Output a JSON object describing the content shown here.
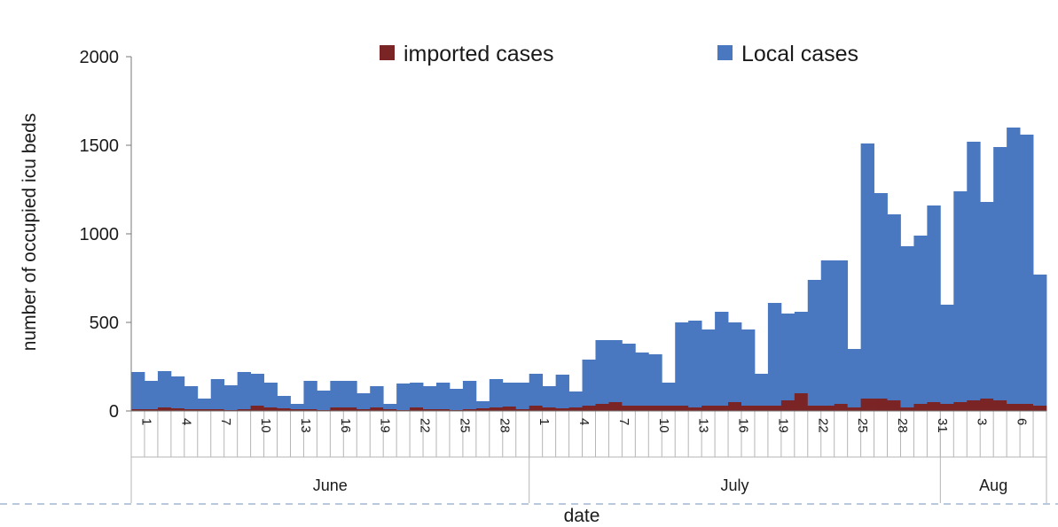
{
  "chart_data": {
    "type": "bar",
    "stacked": true,
    "xlabel": "date",
    "ylabel": "number of occupied icu beds",
    "ylim": [
      0,
      2000
    ],
    "yticks": [
      0,
      500,
      1000,
      1500,
      2000
    ],
    "legend_position": "top",
    "months": [
      {
        "label": "June",
        "days": 30
      },
      {
        "label": "July",
        "days": 31
      },
      {
        "label": "Aug",
        "days": 8
      }
    ],
    "x_tick_labels": [
      {
        "day_index": 0,
        "label": "1"
      },
      {
        "day_index": 3,
        "label": "4"
      },
      {
        "day_index": 6,
        "label": "7"
      },
      {
        "day_index": 9,
        "label": "10"
      },
      {
        "day_index": 12,
        "label": "13"
      },
      {
        "day_index": 15,
        "label": "16"
      },
      {
        "day_index": 18,
        "label": "19"
      },
      {
        "day_index": 21,
        "label": "22"
      },
      {
        "day_index": 24,
        "label": "25"
      },
      {
        "day_index": 27,
        "label": "28"
      },
      {
        "day_index": 30,
        "label": "1"
      },
      {
        "day_index": 33,
        "label": "4"
      },
      {
        "day_index": 36,
        "label": "7"
      },
      {
        "day_index": 39,
        "label": "10"
      },
      {
        "day_index": 42,
        "label": "13"
      },
      {
        "day_index": 45,
        "label": "16"
      },
      {
        "day_index": 48,
        "label": "19"
      },
      {
        "day_index": 51,
        "label": "22"
      },
      {
        "day_index": 54,
        "label": "25"
      },
      {
        "day_index": 57,
        "label": "28"
      },
      {
        "day_index": 60,
        "label": "31"
      },
      {
        "day_index": 63,
        "label": "3"
      },
      {
        "day_index": 66,
        "label": "6"
      }
    ],
    "series": [
      {
        "name": "imported cases",
        "color": "#7b2426",
        "values": [
          10,
          10,
          20,
          15,
          10,
          10,
          10,
          5,
          10,
          30,
          20,
          15,
          10,
          10,
          5,
          20,
          20,
          10,
          20,
          10,
          5,
          20,
          10,
          10,
          5,
          10,
          15,
          20,
          25,
          10,
          30,
          20,
          15,
          20,
          30,
          40,
          50,
          30,
          30,
          30,
          30,
          30,
          20,
          30,
          30,
          50,
          30,
          30,
          30,
          60,
          100,
          30,
          30,
          40,
          20,
          70,
          70,
          60,
          20,
          40,
          50,
          40,
          50,
          60,
          70,
          60,
          40,
          40,
          30
        ]
      },
      {
        "name": "Local cases",
        "color": "#4a78c0",
        "values": [
          210,
          160,
          205,
          180,
          130,
          60,
          170,
          140,
          210,
          180,
          140,
          70,
          30,
          160,
          110,
          150,
          150,
          90,
          120,
          30,
          150,
          140,
          130,
          150,
          120,
          160,
          40,
          160,
          135,
          150,
          180,
          120,
          190,
          90,
          260,
          360,
          350,
          350,
          300,
          290,
          130,
          470,
          490,
          430,
          530,
          450,
          430,
          180,
          580,
          490,
          460,
          710,
          820,
          810,
          330,
          1440,
          1160,
          1050,
          910,
          950,
          1110,
          560,
          1190,
          1460,
          1110,
          1430,
          1560,
          1520,
          740
        ]
      }
    ]
  }
}
